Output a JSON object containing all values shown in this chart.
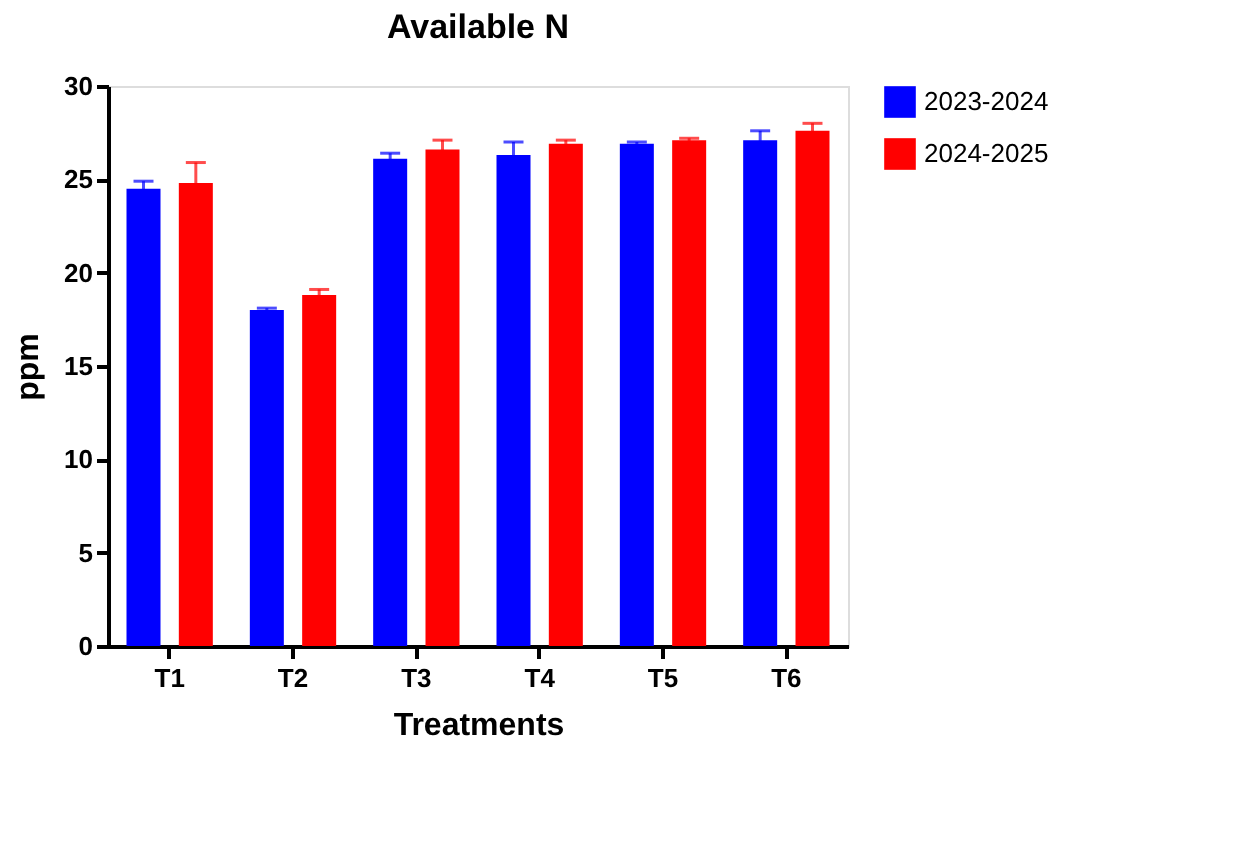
{
  "chart_data": {
    "type": "bar",
    "title": "Available N",
    "xlabel": "Treatments",
    "ylabel": "ppm",
    "categories": [
      "T1",
      "T2",
      "T3",
      "T4",
      "T5",
      "T6"
    ],
    "series": [
      {
        "name": "2023-2024",
        "color": "#0000ff",
        "values": [
          24.5,
          18.0,
          26.1,
          26.3,
          26.9,
          27.1
        ],
        "errors": [
          0.4,
          0.1,
          0.3,
          0.7,
          0.1,
          0.5
        ]
      },
      {
        "name": "2024-2025",
        "color": "#ff0000",
        "values": [
          24.8,
          18.8,
          26.6,
          26.9,
          27.1,
          27.6
        ],
        "errors": [
          1.1,
          0.3,
          0.5,
          0.2,
          0.1,
          0.4
        ]
      }
    ],
    "ylim": [
      0,
      30
    ],
    "yticks": [
      0,
      5,
      10,
      15,
      20,
      25,
      30
    ],
    "grid": false,
    "legend": "top right"
  }
}
